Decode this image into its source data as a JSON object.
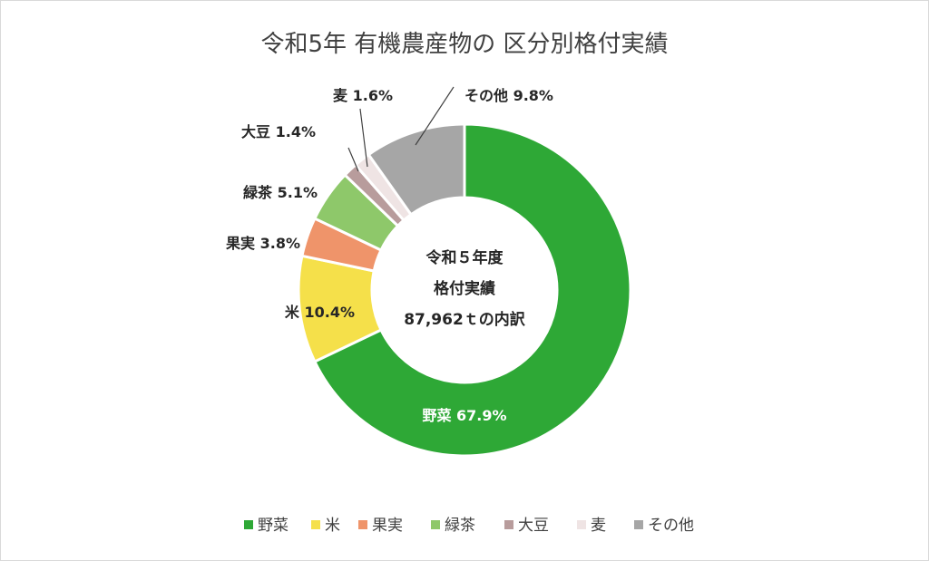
{
  "chart_data": {
    "type": "pie",
    "title": "令和5年 有機農産物の 区分別格付実績",
    "center_text": [
      "令和５年度",
      "格付実績",
      "87,962ｔの内訳"
    ],
    "categories": [
      "野菜",
      "米",
      "果実",
      "緑茶",
      "大豆",
      "麦",
      "その他"
    ],
    "values": [
      67.9,
      10.4,
      3.8,
      5.1,
      1.4,
      1.6,
      9.8
    ],
    "value_labels": [
      "67.9%",
      "10.4%",
      "3.8%",
      "5.1%",
      "1.4%",
      "1.6%",
      "9.8%"
    ],
    "colors": [
      "#2ea836",
      "#f5e04a",
      "#ef946a",
      "#8ec86a",
      "#b89c9c",
      "#efe4e4",
      "#a6a6a6"
    ],
    "donut": true,
    "legend_position": "bottom"
  }
}
